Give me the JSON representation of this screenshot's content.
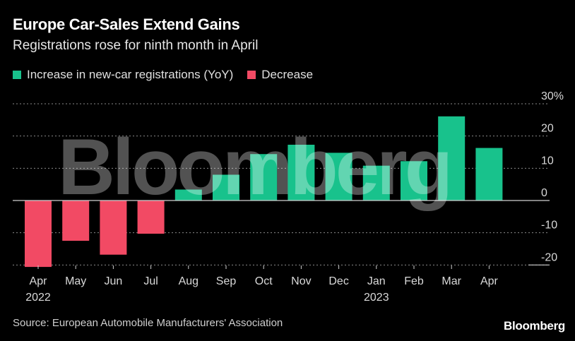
{
  "header": {
    "title": "Europe Car-Sales Extend Gains",
    "subtitle": "Registrations rose for ninth month in April"
  },
  "legend": [
    {
      "label": "Increase in new-car registrations (YoY)",
      "color": "#18c28c"
    },
    {
      "label": "Decrease",
      "color": "#f24a64"
    }
  ],
  "footer": {
    "source": "Source: European Automobile Manufacturers' Association",
    "brand": "Bloomberg"
  },
  "watermark": "Bloomberg",
  "chart_data": {
    "type": "bar",
    "title": "Europe Car-Sales Extend Gains",
    "subtitle": "Registrations rose for ninth month in April",
    "categories": [
      "Apr",
      "May",
      "Jun",
      "Jul",
      "Aug",
      "Sep",
      "Oct",
      "Nov",
      "Dec",
      "Jan",
      "Feb",
      "Mar",
      "Apr"
    ],
    "year_labels": [
      "2022",
      "",
      "",
      "",
      "",
      "",
      "",
      "",
      "",
      "2023",
      "",
      "",
      ""
    ],
    "values": [
      -20.6,
      -12.5,
      -16.8,
      -10.3,
      3.4,
      8.0,
      14.4,
      17.3,
      14.8,
      10.8,
      12.2,
      26.1,
      16.3
    ],
    "ylim": [
      -20,
      30
    ],
    "yticks": [
      {
        "value": 30,
        "label": "30%"
      },
      {
        "value": 20,
        "label": "20"
      },
      {
        "value": 10,
        "label": "10"
      },
      {
        "value": 0,
        "label": "0"
      },
      {
        "value": -10,
        "label": "-10"
      },
      {
        "value": -20,
        "label": "-20"
      }
    ],
    "increase_color": "#18c28c",
    "decrease_color": "#f24a64",
    "grid": true,
    "axis_side": "right"
  }
}
